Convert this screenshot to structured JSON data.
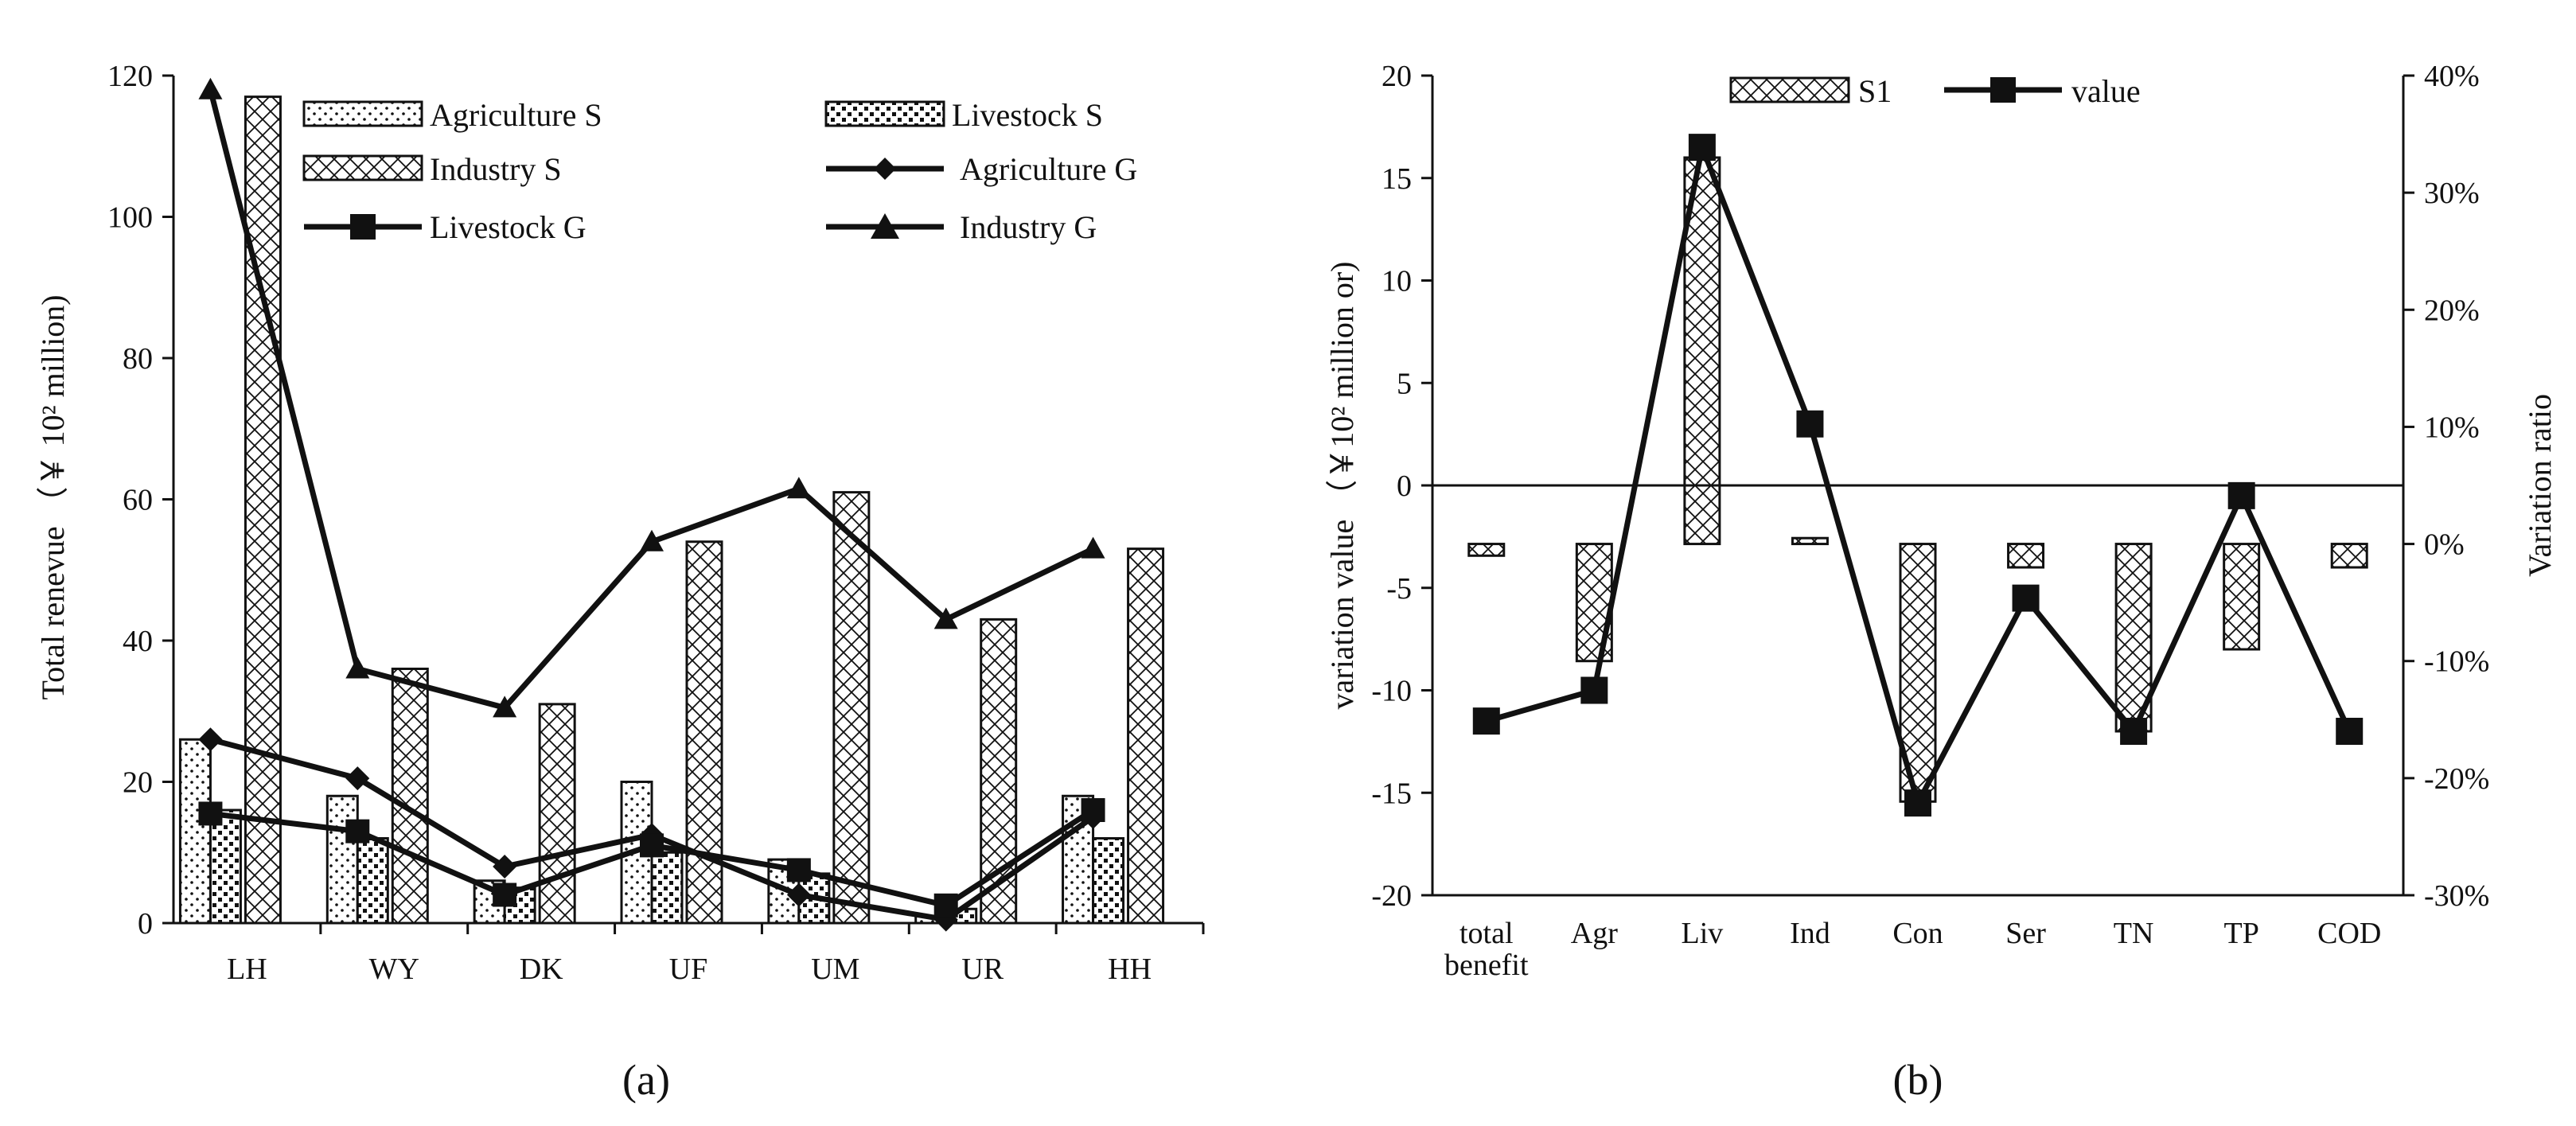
{
  "chart_data": [
    {
      "id": "a",
      "panel_label": "(a)",
      "type": "bar+line",
      "categories": [
        "LH",
        "WY",
        "DK",
        "UF",
        "UM",
        "UR",
        "HH"
      ],
      "ylabel": "Total renevue （￥ 10² million)",
      "ylim": [
        0,
        120
      ],
      "yticks": [
        "0",
        "20",
        "40",
        "60",
        "80",
        "100",
        "120"
      ],
      "bar_series": [
        {
          "name": "Agriculture S",
          "pattern": "dots",
          "values": [
            26,
            18,
            6,
            20,
            9,
            1,
            18
          ]
        },
        {
          "name": "Livestock S",
          "pattern": "dense-dots",
          "values": [
            16,
            12,
            5,
            10,
            7,
            2,
            12
          ]
        },
        {
          "name": "Industry S",
          "pattern": "cross",
          "values": [
            117,
            36,
            31,
            54,
            61,
            43,
            53
          ]
        }
      ],
      "line_series": [
        {
          "name": "Agriculture G",
          "marker": "diamond",
          "values": [
            26,
            20.5,
            8,
            12.5,
            4,
            0.5,
            15
          ]
        },
        {
          "name": "Livestock G",
          "marker": "square",
          "values": [
            15.5,
            13,
            4,
            11,
            7.5,
            2.5,
            16
          ]
        },
        {
          "name": "Industry G",
          "marker": "triangle",
          "values": [
            118,
            36,
            30.5,
            54,
            61.5,
            43,
            53
          ]
        }
      ]
    },
    {
      "id": "b",
      "panel_label": "(b)",
      "type": "bar+line",
      "categories": [
        "total benefit",
        "Agr",
        "Liv",
        "Ind",
        "Con",
        "Ser",
        "TN",
        "TP",
        "COD"
      ],
      "ylabel": "variation value （￥10² million  or)",
      "y2label": "Variation ratio",
      "ylim": [
        -20,
        20
      ],
      "yticks": [
        "-20",
        "-15",
        "-10",
        "-5",
        "0",
        "5",
        "10",
        "15",
        "20"
      ],
      "y2lim": [
        -30,
        40
      ],
      "y2ticks": [
        "-30%",
        "-20%",
        "-10%",
        "0%",
        "10%",
        "20%",
        "30%",
        "40%"
      ],
      "bar_series": {
        "name": "S1",
        "axis": "secondary",
        "values": [
          -1,
          -10,
          33,
          0.5,
          -22,
          -2,
          -16,
          -9,
          -2
        ]
      },
      "line_series": {
        "name": "value",
        "axis": "primary",
        "marker": "square",
        "values": [
          -11.5,
          -10,
          16.5,
          3,
          -15.5,
          -5.5,
          -12,
          -0.5,
          -12
        ]
      }
    }
  ]
}
